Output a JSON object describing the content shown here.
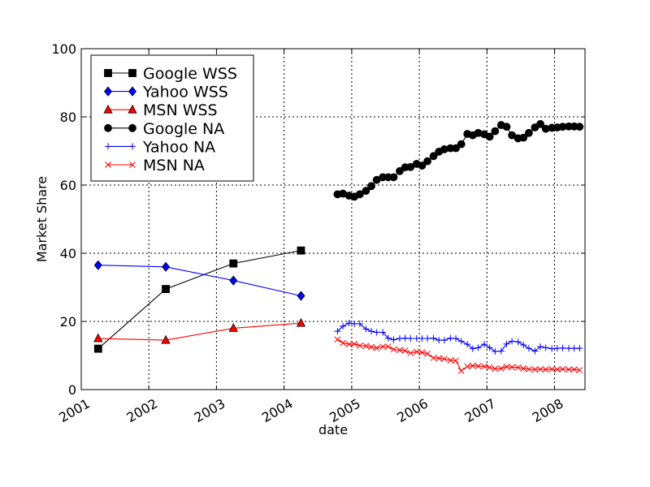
{
  "chart_data": {
    "type": "line",
    "xlabel": "date",
    "ylabel": "Market Share",
    "xlim": [
      2001.0,
      2008.45
    ],
    "ylim": [
      0,
      100
    ],
    "x_ticks": [
      2001,
      2002,
      2003,
      2004,
      2005,
      2006,
      2007,
      2008
    ],
    "x_tick_labels": [
      "2001",
      "2002",
      "2003",
      "2004",
      "2005",
      "2006",
      "2007",
      "2008"
    ],
    "y_ticks": [
      0,
      20,
      40,
      60,
      80,
      100
    ],
    "y_tick_labels": [
      "0",
      "20",
      "40",
      "60",
      "80",
      "100"
    ],
    "grid": true,
    "legend_position": "top-left",
    "colors": {
      "google": "#000000",
      "yahoo": "#0000ff",
      "msn": "#ff0000"
    },
    "series": [
      {
        "name": "Google WSS",
        "color": "#000000",
        "marker": "square",
        "x": [
          2001.25,
          2002.25,
          2003.25,
          2004.25
        ],
        "values": [
          12,
          29.5,
          37,
          40.8
        ]
      },
      {
        "name": "Yahoo WSS",
        "color": "#0000ff",
        "marker": "diamond",
        "x": [
          2001.25,
          2002.25,
          2003.25,
          2004.25
        ],
        "values": [
          36.5,
          36,
          32,
          27.5
        ]
      },
      {
        "name": "MSN WSS",
        "color": "#ff0000",
        "marker": "triangle",
        "x": [
          2001.25,
          2002.25,
          2003.25,
          2004.25
        ],
        "values": [
          15,
          14.5,
          18,
          19.5
        ]
      },
      {
        "name": "Google NA",
        "color": "#000000",
        "marker": "circle",
        "x": [
          2004.79,
          2004.87,
          2004.96,
          2005.04,
          2005.12,
          2005.21,
          2005.29,
          2005.37,
          2005.46,
          2005.54,
          2005.62,
          2005.71,
          2005.79,
          2005.87,
          2005.96,
          2006.04,
          2006.12,
          2006.21,
          2006.29,
          2006.37,
          2006.46,
          2006.54,
          2006.62,
          2006.71,
          2006.79,
          2006.87,
          2006.96,
          2007.04,
          2007.12,
          2007.21,
          2007.29,
          2007.37,
          2007.46,
          2007.54,
          2007.62,
          2007.71,
          2007.79,
          2007.87,
          2007.96,
          2008.04,
          2008.12,
          2008.21,
          2008.29,
          2008.37
        ],
        "values": [
          57.3,
          57.5,
          56.9,
          56.6,
          57.3,
          58.3,
          59.7,
          61.5,
          62.3,
          62.3,
          62.3,
          64.1,
          65.2,
          65.3,
          66.2,
          65.7,
          67,
          68.5,
          69.8,
          70.5,
          70.8,
          70.8,
          72,
          75,
          74.6,
          75.3,
          74.9,
          74.2,
          75.8,
          77.6,
          77.1,
          74.6,
          73.7,
          73.9,
          75.3,
          76.9,
          77.9,
          76.5,
          76.8,
          76.9,
          77.1,
          77.2,
          77.2,
          77.1
        ]
      },
      {
        "name": "Yahoo NA",
        "color": "#0000ff",
        "marker": "plus",
        "x": [
          2004.79,
          2004.87,
          2004.96,
          2005.04,
          2005.12,
          2005.21,
          2005.29,
          2005.37,
          2005.46,
          2005.54,
          2005.62,
          2005.71,
          2005.79,
          2005.87,
          2005.96,
          2006.04,
          2006.12,
          2006.21,
          2006.29,
          2006.37,
          2006.46,
          2006.54,
          2006.62,
          2006.71,
          2006.79,
          2006.87,
          2006.96,
          2007.04,
          2007.12,
          2007.21,
          2007.29,
          2007.37,
          2007.46,
          2007.54,
          2007.62,
          2007.71,
          2007.79,
          2007.87,
          2007.96,
          2008.04,
          2008.12,
          2008.21,
          2008.29,
          2008.37
        ],
        "values": [
          17.1,
          18.6,
          19.5,
          19.3,
          19.3,
          17.8,
          17.1,
          16.8,
          16.8,
          15.1,
          14.6,
          15,
          15.1,
          15,
          15,
          15,
          15,
          15.1,
          14.5,
          14.5,
          15.1,
          15,
          14.2,
          13.3,
          12,
          12.3,
          13.3,
          12.3,
          11.2,
          11.3,
          13.4,
          14.2,
          14,
          13.1,
          12.1,
          11.3,
          12.6,
          12.3,
          12,
          12.1,
          12.2,
          12.1,
          12.1,
          12.1
        ]
      },
      {
        "name": "MSN NA",
        "color": "#ff0000",
        "marker": "x",
        "x": [
          2004.79,
          2004.87,
          2004.96,
          2005.04,
          2005.12,
          2005.21,
          2005.29,
          2005.37,
          2005.46,
          2005.54,
          2005.62,
          2005.71,
          2005.79,
          2005.87,
          2005.96,
          2006.04,
          2006.12,
          2006.21,
          2006.29,
          2006.37,
          2006.46,
          2006.54,
          2006.62,
          2006.71,
          2006.79,
          2006.87,
          2006.96,
          2007.04,
          2007.12,
          2007.21,
          2007.29,
          2007.37,
          2007.46,
          2007.54,
          2007.62,
          2007.71,
          2007.79,
          2007.87,
          2007.96,
          2008.04,
          2008.12,
          2008.21,
          2008.29,
          2008.37
        ],
        "values": [
          14.7,
          13.7,
          13.3,
          13.4,
          12.9,
          12.8,
          12.5,
          12.2,
          12.6,
          12.6,
          11.8,
          11.6,
          11.4,
          10.7,
          11.1,
          10.9,
          10.5,
          9.3,
          9.2,
          9,
          8.6,
          8.5,
          5.5,
          6.8,
          7,
          6.9,
          6.8,
          6.5,
          6.1,
          6.2,
          6.7,
          6.6,
          6.5,
          6.2,
          6,
          5.9,
          6,
          5.9,
          6,
          5.9,
          6,
          5.9,
          5.9,
          5.7
        ]
      }
    ]
  }
}
